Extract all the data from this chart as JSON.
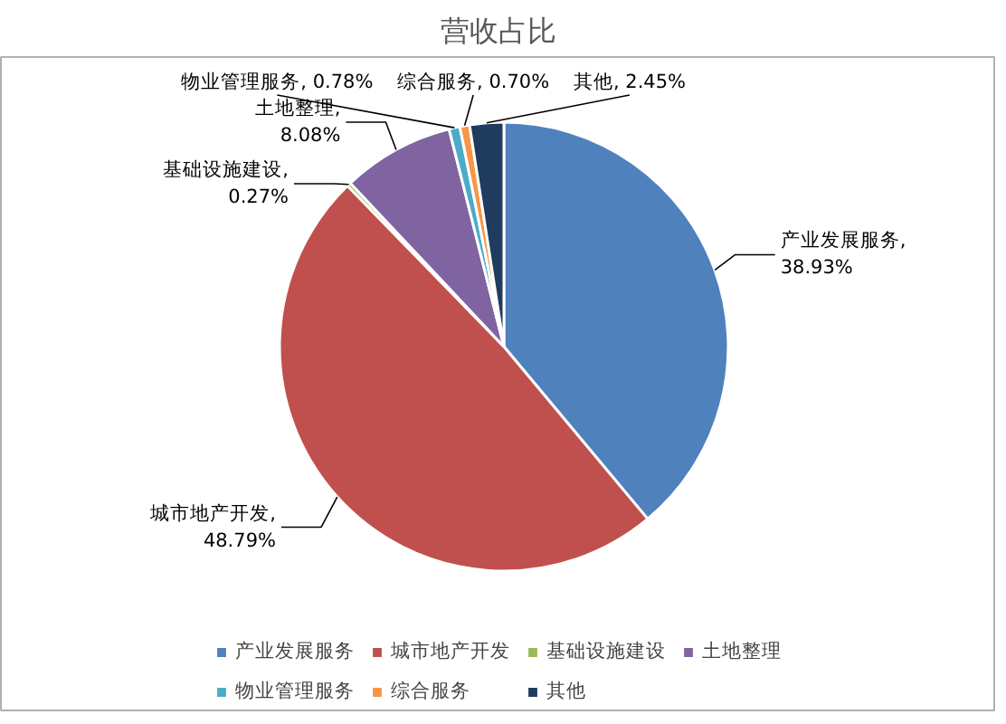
{
  "chart_data": {
    "type": "pie",
    "title": "营收占比",
    "categories": [
      "产业发展服务",
      "城市地产开发",
      "基础设施建设",
      "土地整理",
      "物业管理服务",
      "综合服务",
      "其他"
    ],
    "values": [
      38.93,
      48.79,
      0.27,
      8.08,
      0.78,
      0.7,
      2.45
    ],
    "value_labels": [
      "产业发展服务, 38.93%",
      "城市地产开发, 48.79%",
      "基础设施建设, 0.27%",
      "土地整理, 8.08%",
      "物业管理服务, 0.78%",
      "综合服务, 0.70%",
      "其他, 2.45%"
    ],
    "colors": [
      "#4f81bd",
      "#c0504d",
      "#9bbb59",
      "#8064a2",
      "#4bacc6",
      "#f79646",
      "#1f3b5e"
    ],
    "legend": "bottom"
  }
}
